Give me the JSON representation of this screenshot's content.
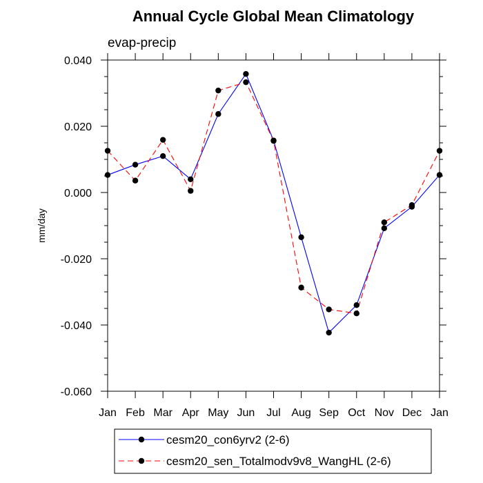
{
  "chart_data": {
    "type": "line",
    "title": "Annual Cycle Global Mean Climatology",
    "subtitle": "evap-precip",
    "xlabel": "",
    "ylabel": "mm/day",
    "categories": [
      "Jan",
      "Feb",
      "Mar",
      "Apr",
      "May",
      "Jun",
      "Jul",
      "Aug",
      "Sep",
      "Oct",
      "Nov",
      "Dec",
      "Jan"
    ],
    "ylim": [
      -0.06,
      0.04
    ],
    "yticks": [
      -0.06,
      -0.04,
      -0.02,
      0.0,
      0.02,
      0.04
    ],
    "ytick_labels": [
      "-0.060",
      "-0.040",
      "-0.020",
      "0.000",
      "0.020",
      "0.040"
    ],
    "series": [
      {
        "name": "cesm20_con6yrv2 (2-6)",
        "color": "#0000ff",
        "line_style": "solid",
        "marker": "filled-circle",
        "values": [
          0.0053,
          0.0084,
          0.011,
          0.004,
          0.0237,
          0.0358,
          0.0157,
          -0.0135,
          -0.0423,
          -0.034,
          -0.0108,
          -0.0043,
          0.0053
        ]
      },
      {
        "name": "cesm20_sen_Totalmodv9v8_WangHL (2-6)",
        "color": "#ff0000",
        "line_style": "dashed",
        "marker": "filled-circle",
        "values": [
          0.0126,
          0.0036,
          0.0159,
          0.0005,
          0.0308,
          0.0333,
          0.0156,
          -0.0287,
          -0.0353,
          -0.0365,
          -0.009,
          -0.0038,
          0.0126
        ]
      }
    ],
    "legend_position": "bottom"
  }
}
